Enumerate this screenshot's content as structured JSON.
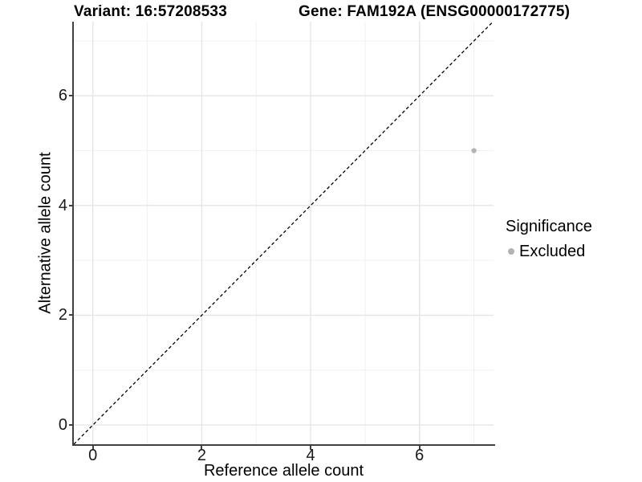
{
  "figure": {
    "title_variant": "Variant: 16:57208533",
    "title_gene": "Gene: FAM192A (ENSG00000172775)"
  },
  "chart_data": {
    "type": "scatter",
    "title_left": "Variant: 16:57208533",
    "title_right": "Gene: FAM192A (ENSG00000172775)",
    "xlabel": "Reference allele count",
    "ylabel": "Alternative allele count",
    "xlim": [
      -0.35,
      7.36
    ],
    "ylim": [
      -0.35,
      7.35
    ],
    "x_major_ticks": [
      0,
      2,
      4,
      6
    ],
    "x_minor_ticks": [
      1,
      3,
      5,
      7
    ],
    "y_major_ticks": [
      0,
      2,
      4,
      6
    ],
    "y_minor_ticks": [
      1,
      3,
      5,
      7
    ],
    "grid": "major+minor",
    "legend_position": "right",
    "identity_line": {
      "style": "dashed",
      "slope": 1,
      "intercept": 0,
      "color": "#000000"
    },
    "series": [
      {
        "name": "Excluded",
        "color": "#b3b3b3",
        "points": [
          {
            "x": 7,
            "y": 5
          }
        ]
      }
    ]
  },
  "legend": {
    "title": "Significance",
    "items": [
      {
        "label": "Excluded",
        "color": "#b3b3b3"
      }
    ]
  },
  "colors": {
    "background": "#ffffff",
    "axis_line": "#404040",
    "grid_major": "#e5e5e5",
    "grid_minor": "#f0f0f0",
    "tick_text": "#1a1a1a",
    "point": "#b3b3b3",
    "dashed_line": "#000000"
  }
}
